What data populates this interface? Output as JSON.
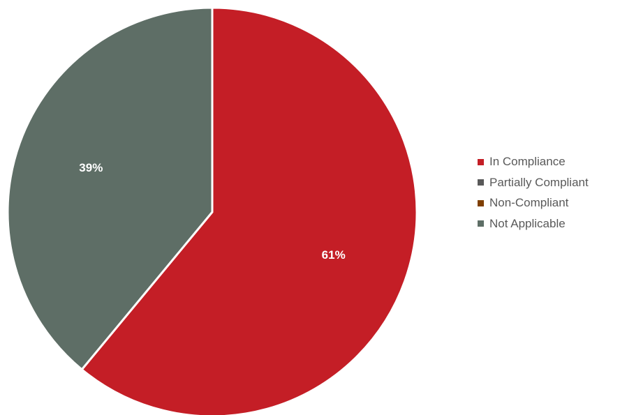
{
  "chart_data": {
    "type": "pie",
    "title": "",
    "categories": [
      "In Compliance",
      "Partially Compliant",
      "Non-Compliant",
      "Not Applicable"
    ],
    "values": [
      61,
      0,
      0,
      39
    ],
    "data_labels": [
      "61%",
      "",
      "",
      "39%"
    ],
    "colors": [
      "#C41E26",
      "#595959",
      "#7F3F00",
      "#5E6E66"
    ],
    "start_angle_deg": 0,
    "direction": "clockwise",
    "legend_position": "right"
  }
}
